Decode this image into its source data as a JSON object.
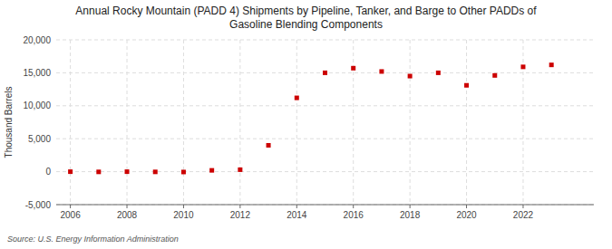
{
  "chart_data": {
    "type": "scatter",
    "title": "Annual Rocky Mountain (PADD 4) Shipments by Pipeline, Tanker, and Barge to Other PADDs of\nGasoline Blending Components",
    "y_label": "Thousand Barrels",
    "source": "Source: U.S. Energy Information Administration",
    "x": [
      2006,
      2007,
      2008,
      2009,
      2010,
      2011,
      2012,
      2013,
      2014,
      2015,
      2016,
      2017,
      2018,
      2019,
      2020,
      2021,
      2022,
      2023
    ],
    "values": [
      0,
      -30,
      0,
      -30,
      -50,
      200,
      300,
      4000,
      11200,
      15000,
      15700,
      15200,
      14500,
      15000,
      13100,
      14600,
      15900,
      16200
    ],
    "color": "#cc0000",
    "marker": "square",
    "xlim": [
      2005.5,
      2024.5
    ],
    "xticks": [
      2006,
      2008,
      2010,
      2012,
      2014,
      2016,
      2018,
      2020,
      2022
    ],
    "ylim": [
      -5000,
      20000
    ],
    "yticks": [
      {
        "value": -5000,
        "label": "-5,000"
      },
      0,
      {
        "value": 5000,
        "label": "5,000"
      },
      {
        "value": 10000,
        "label": "10,000"
      },
      {
        "value": 15000,
        "label": "15,000"
      },
      {
        "value": 20000,
        "label": "20,000"
      }
    ],
    "grid": true
  }
}
